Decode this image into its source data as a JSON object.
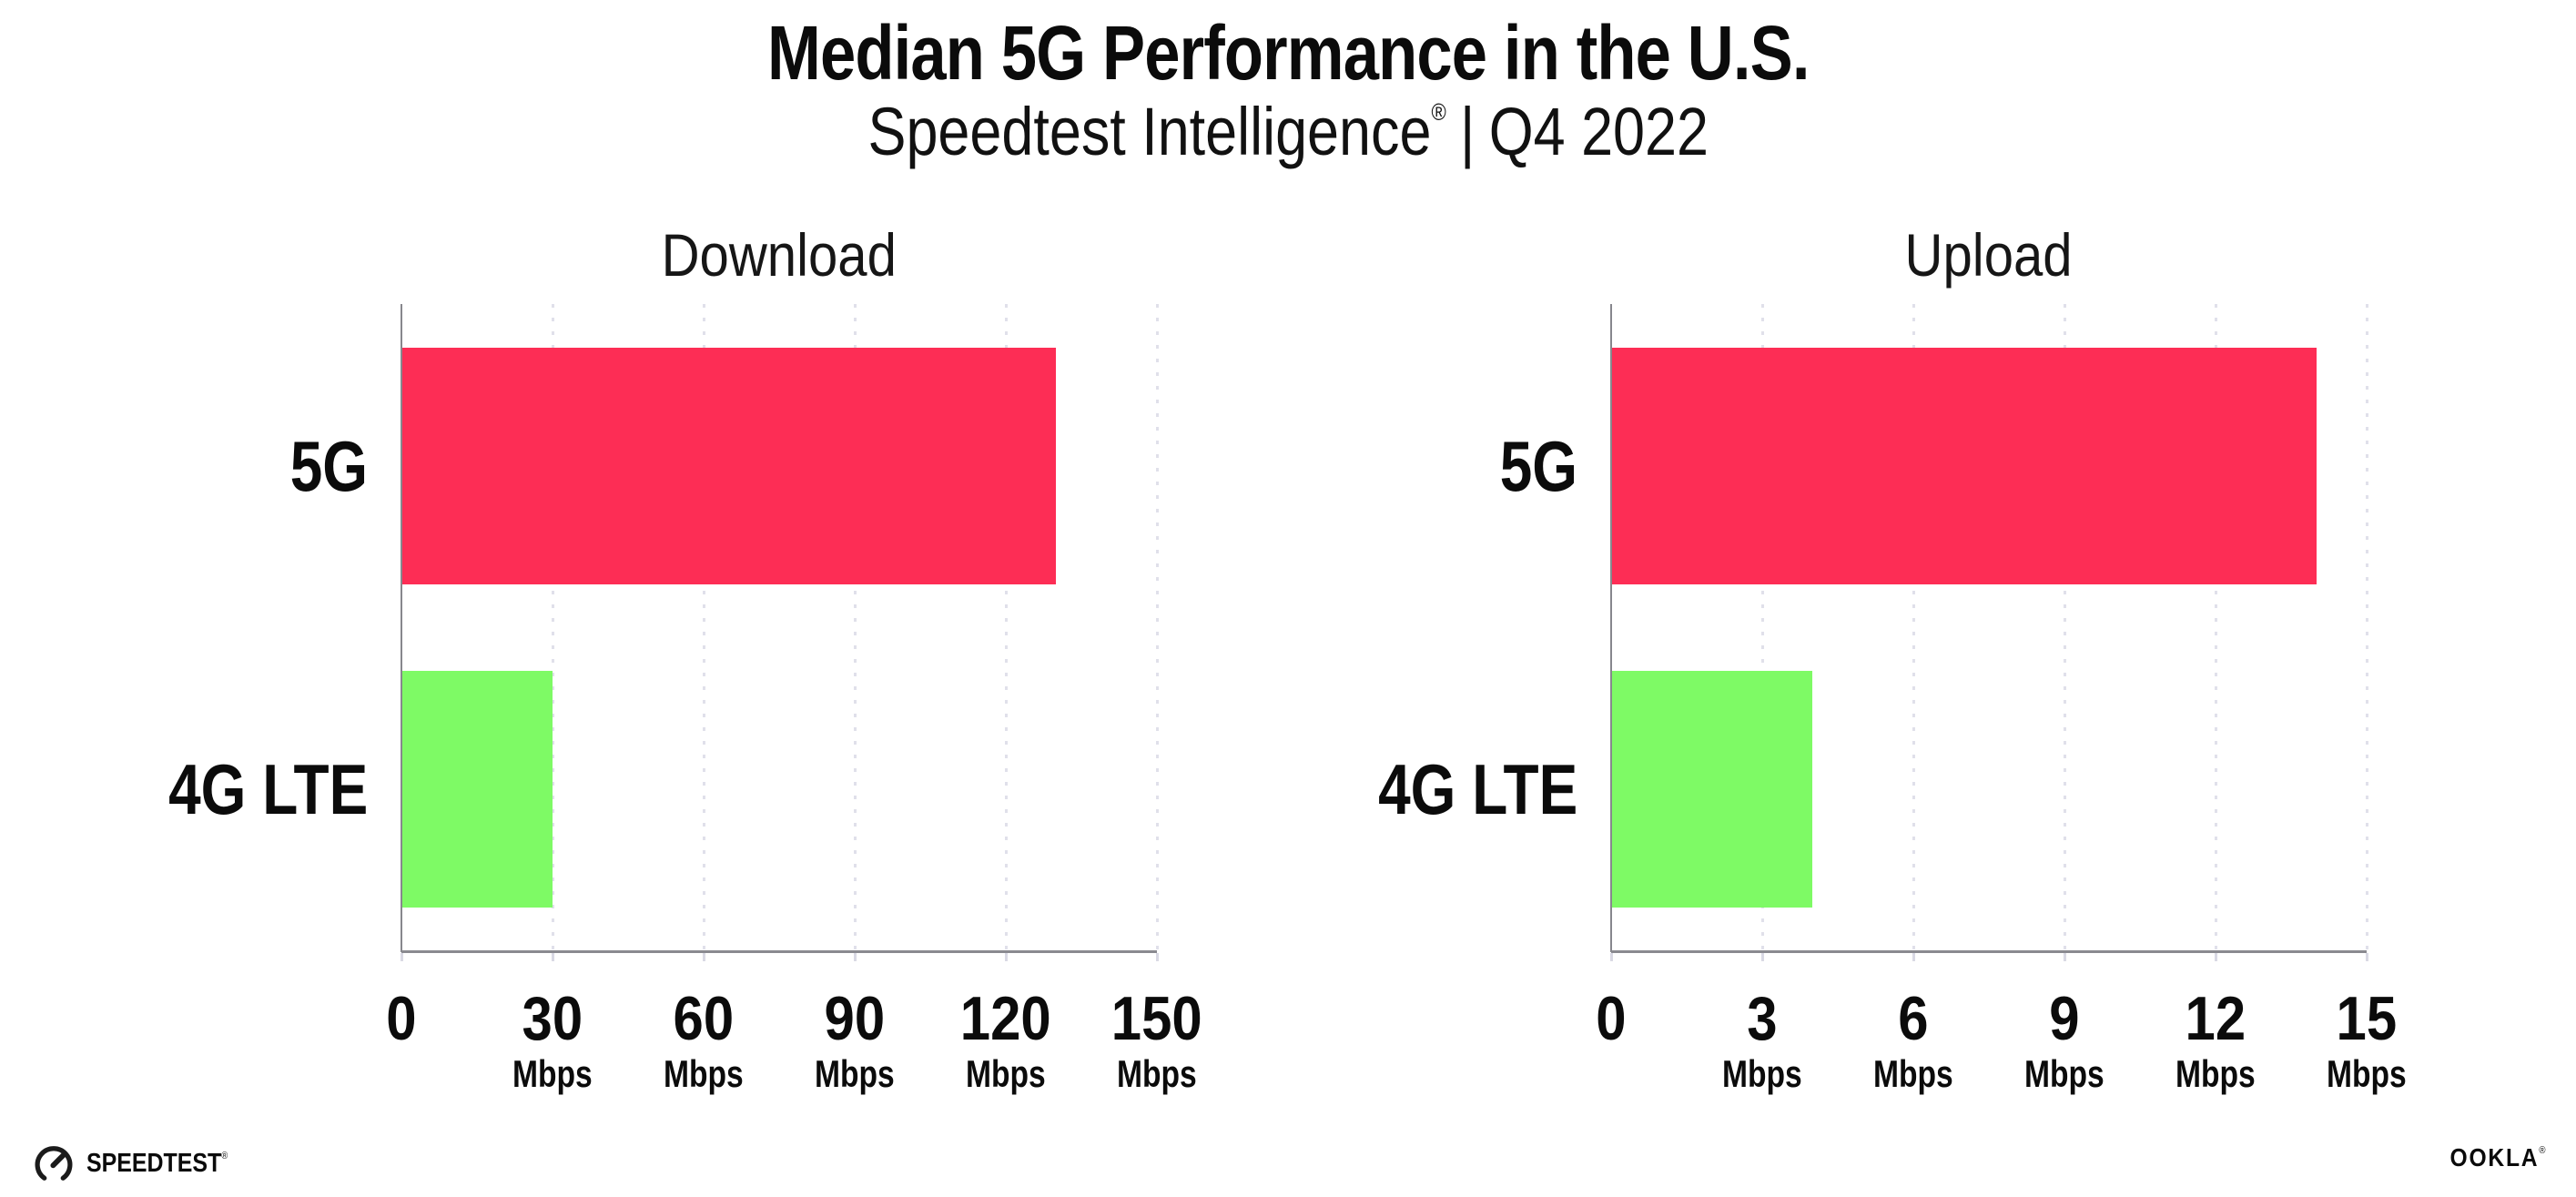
{
  "header": {
    "title": "Median 5G Performance in the U.S.",
    "subtitle_brand": "Speedtest Intelligence",
    "subtitle_registered": "®",
    "subtitle_separator": "|",
    "subtitle_period": "Q4 2022"
  },
  "chart_data": [
    {
      "type": "bar",
      "orientation": "horizontal",
      "title": "Download",
      "categories": [
        "5G",
        "4G LTE"
      ],
      "values": [
        130,
        30
      ],
      "unit": "Mbps",
      "xlabel": "",
      "ylabel": "",
      "xlim": [
        0,
        150
      ],
      "xticks": [
        0,
        30,
        60,
        90,
        120,
        150
      ],
      "tick_unit_label": "Mbps",
      "bar_colors": [
        "#fd2d55",
        "#7efa65"
      ],
      "grid": "vertical dotted"
    },
    {
      "type": "bar",
      "orientation": "horizontal",
      "title": "Upload",
      "categories": [
        "5G",
        "4G LTE"
      ],
      "values": [
        14,
        4
      ],
      "unit": "Mbps",
      "xlabel": "",
      "ylabel": "",
      "xlim": [
        0,
        15
      ],
      "xticks": [
        0,
        3,
        6,
        9,
        12,
        15
      ],
      "tick_unit_label": "Mbps",
      "bar_colors": [
        "#fd2d55",
        "#7efa65"
      ],
      "grid": "vertical dotted"
    }
  ],
  "colors": {
    "bar_5g": "#fd2d55",
    "bar_4g_lte": "#7efa65",
    "axis": "#8a8a90",
    "gridline": "#e0e0ea",
    "text": "#0b0b0b"
  },
  "footer": {
    "speedtest_label": "SPEEDTEST",
    "speedtest_mark": "®",
    "ookla_label": "OOKLA",
    "ookla_mark": "®"
  }
}
